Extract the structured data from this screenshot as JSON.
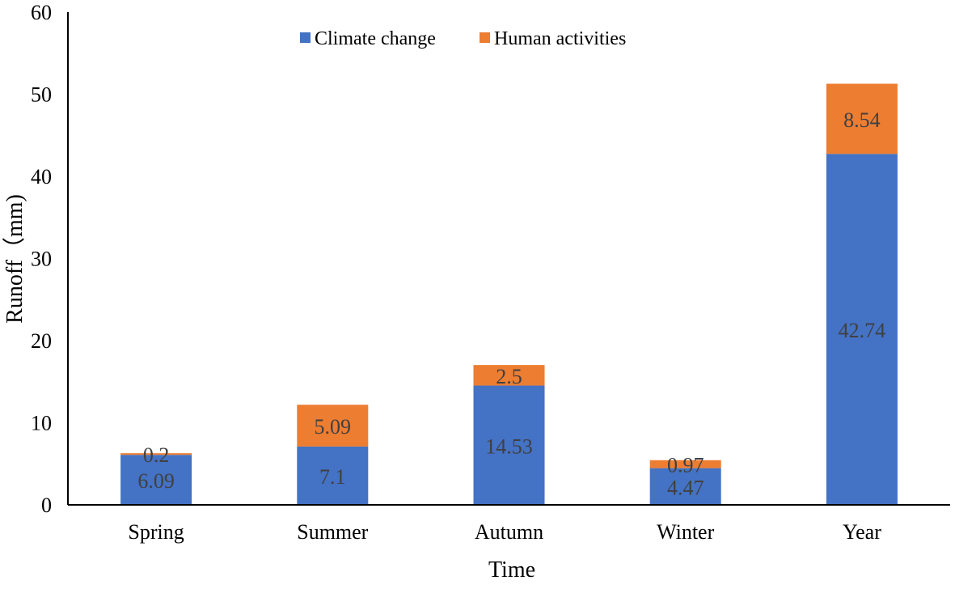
{
  "chart_data": {
    "type": "bar",
    "stacked": true,
    "title": "",
    "xlabel": "Time",
    "ylabel": "Runoff（mm)",
    "ylim": [
      0,
      60
    ],
    "yticks": [
      0,
      10,
      20,
      30,
      40,
      50,
      60
    ],
    "grid": false,
    "legend_position": "top-center",
    "categories": [
      "Spring",
      "Summer",
      "Autumn",
      "Winter",
      "Year"
    ],
    "series": [
      {
        "name": "Climate change",
        "color": "#4472C4",
        "values": [
          6.09,
          7.1,
          14.53,
          4.47,
          42.74
        ],
        "labels": [
          "6.09",
          "7.1",
          "14.53",
          "4.47",
          "42.74"
        ]
      },
      {
        "name": "Human activities",
        "color": "#ED7D31",
        "values": [
          0.2,
          5.09,
          2.5,
          0.97,
          8.54
        ],
        "labels": [
          "0.2",
          "5.09",
          "2.5",
          "0.97",
          "8.54"
        ]
      }
    ],
    "colors": {
      "axis": "#000000",
      "label_text": "#404040",
      "tick_text": "#000000"
    }
  }
}
